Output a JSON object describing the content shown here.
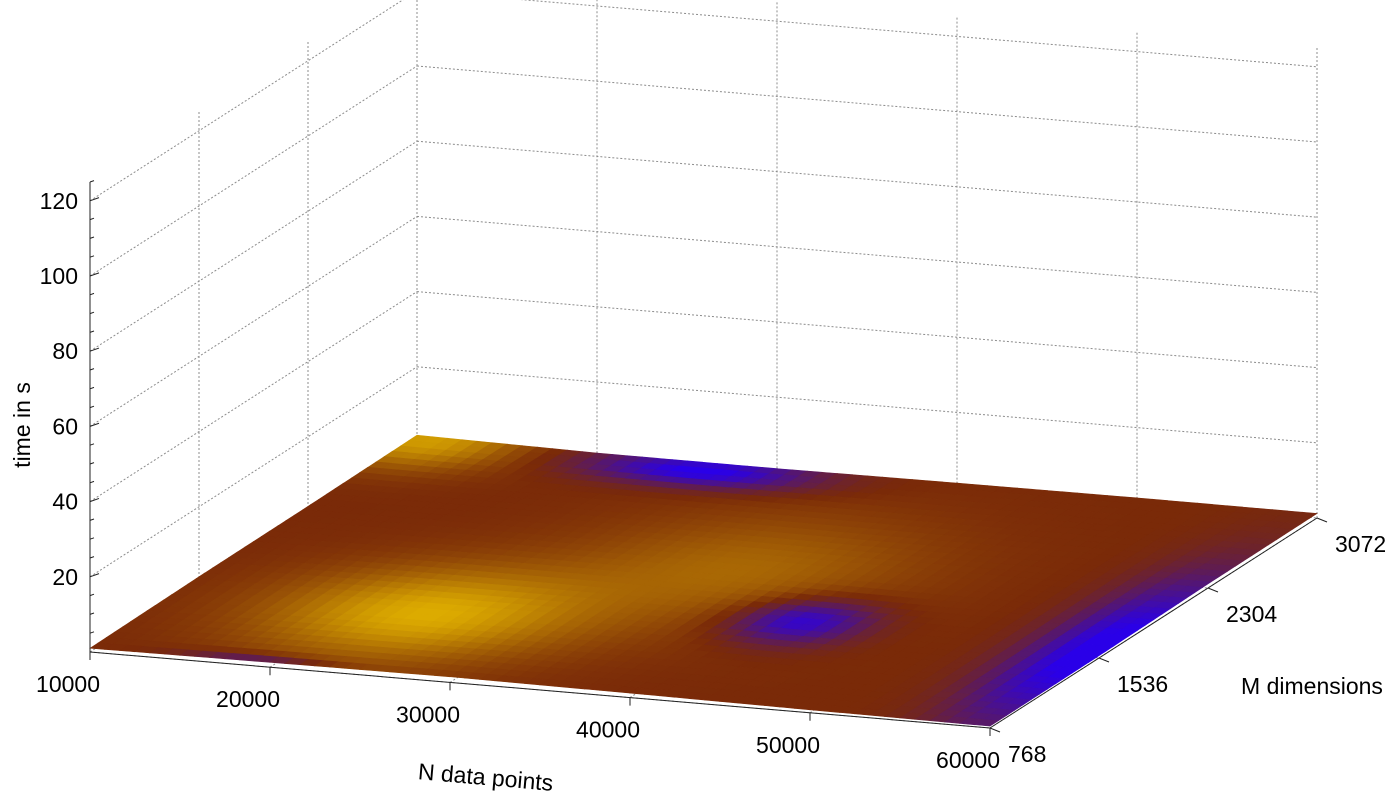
{
  "chart_data": {
    "type": "surface",
    "xlabel": "N data points",
    "ylabel": "M dimensions",
    "zlabel": "time in s",
    "x_ticks": [
      10000,
      20000,
      30000,
      40000,
      50000,
      60000
    ],
    "y_ticks": [
      768,
      1536,
      2304,
      3072
    ],
    "z_ticks": [
      20,
      40,
      60,
      80,
      100,
      120
    ],
    "xlim": [
      10000,
      60000
    ],
    "ylim": [
      768,
      3072
    ],
    "zlim": [
      0,
      125
    ],
    "grid": true,
    "colormap": "blue-brown-gold",
    "colors": {
      "low": "#2a00e8",
      "mid": "#7a2a08",
      "high": "#e0b000"
    },
    "surface_note": "surface is nearly flat at ~1-2 s across the whole domain",
    "z_grid_values": [
      [
        1.0,
        1.3,
        1.5,
        1.2,
        0.8,
        0.5
      ],
      [
        1.4,
        1.7,
        1.8,
        1.5,
        0.9,
        0.6
      ],
      [
        1.5,
        1.8,
        1.6,
        1.3,
        1.2,
        1.1
      ],
      [
        1.8,
        1.1,
        1.0,
        1.2,
        1.3,
        1.2
      ]
    ]
  }
}
